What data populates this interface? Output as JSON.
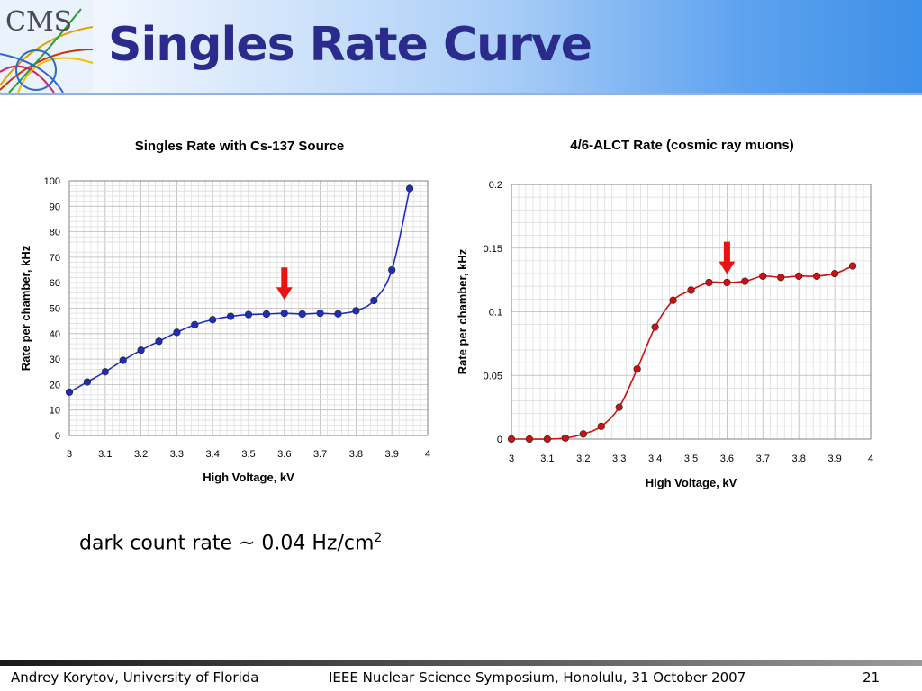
{
  "slide": {
    "title": "Singles Rate Curve",
    "logo_text": "CMS",
    "note_text": "dark count rate ~ 0.04 Hz/cm",
    "note_superscript": "2",
    "footer_left": "Andrey Korytov, University of Florida",
    "footer_center": "IEEE Nuclear Science Symposium, Honolulu, 31 October 2007",
    "page_number": "21"
  },
  "colors": {
    "title": "#2a2b8c",
    "left_series": "#1f2db8",
    "right_series": "#cc1111",
    "arrow": "#ee1111"
  },
  "chart_data": [
    {
      "type": "line",
      "title": "Singles Rate with Cs-137 Source",
      "xlabel": "High Voltage, kV",
      "ylabel": "Rate per chamber, kHz",
      "xlim": [
        3,
        4
      ],
      "ylim": [
        0,
        100
      ],
      "x_ticks": [
        "3",
        "3.1",
        "3.2",
        "3.3",
        "3.4",
        "3.5",
        "3.6",
        "3.7",
        "3.8",
        "3.9",
        "4"
      ],
      "y_ticks": [
        "0",
        "10",
        "20",
        "30",
        "40",
        "50",
        "60",
        "70",
        "80",
        "90",
        "100"
      ],
      "grid": true,
      "arrow_x": 3.6,
      "arrow_y_top": 66,
      "series": [
        {
          "x": [
            3.0,
            3.05,
            3.1,
            3.15,
            3.2,
            3.25,
            3.3,
            3.35,
            3.4,
            3.45,
            3.5,
            3.55,
            3.6,
            3.65,
            3.7,
            3.75,
            3.8,
            3.85,
            3.9,
            3.95
          ],
          "y": [
            17,
            21,
            25,
            29.5,
            33.5,
            37,
            40.5,
            43.5,
            45.5,
            46.8,
            47.5,
            47.7,
            48,
            47.7,
            48,
            47.8,
            49,
            53,
            65,
            97
          ]
        }
      ]
    },
    {
      "type": "line",
      "title": "4/6-ALCT Rate (cosmic ray muons)",
      "xlabel": "High Voltage, kV",
      "ylabel": "Rate per chamber, kHz",
      "xlim": [
        3,
        4
      ],
      "ylim": [
        0,
        0.2
      ],
      "x_ticks": [
        "3",
        "3.1",
        "3.2",
        "3.3",
        "3.4",
        "3.5",
        "3.6",
        "3.7",
        "3.8",
        "3.9",
        "4"
      ],
      "y_ticks": [
        "0",
        "0.05",
        "0.1",
        "0.15",
        "0.2"
      ],
      "grid": true,
      "arrow_x": 3.6,
      "arrow_y_top": 0.155,
      "series": [
        {
          "x": [
            3.0,
            3.05,
            3.1,
            3.15,
            3.2,
            3.25,
            3.3,
            3.35,
            3.4,
            3.45,
            3.5,
            3.55,
            3.6,
            3.65,
            3.7,
            3.75,
            3.8,
            3.85,
            3.9,
            3.95
          ],
          "y": [
            0,
            0,
            0,
            0.0008,
            0.004,
            0.01,
            0.025,
            0.055,
            0.088,
            0.109,
            0.117,
            0.123,
            0.123,
            0.124,
            0.128,
            0.127,
            0.128,
            0.128,
            0.13,
            0.136
          ]
        }
      ]
    }
  ]
}
